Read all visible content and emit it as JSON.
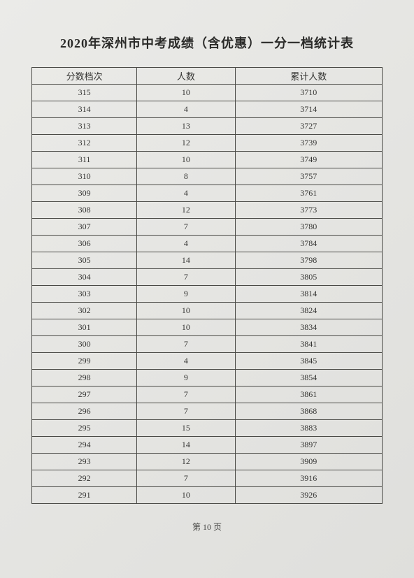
{
  "title": "2020年深州市中考成绩（含优惠）一分一档统计表",
  "columns": [
    "分数档次",
    "人数",
    "累计人数"
  ],
  "rows": [
    [
      "315",
      "10",
      "3710"
    ],
    [
      "314",
      "4",
      "3714"
    ],
    [
      "313",
      "13",
      "3727"
    ],
    [
      "312",
      "12",
      "3739"
    ],
    [
      "311",
      "10",
      "3749"
    ],
    [
      "310",
      "8",
      "3757"
    ],
    [
      "309",
      "4",
      "3761"
    ],
    [
      "308",
      "12",
      "3773"
    ],
    [
      "307",
      "7",
      "3780"
    ],
    [
      "306",
      "4",
      "3784"
    ],
    [
      "305",
      "14",
      "3798"
    ],
    [
      "304",
      "7",
      "3805"
    ],
    [
      "303",
      "9",
      "3814"
    ],
    [
      "302",
      "10",
      "3824"
    ],
    [
      "301",
      "10",
      "3834"
    ],
    [
      "300",
      "7",
      "3841"
    ],
    [
      "299",
      "4",
      "3845"
    ],
    [
      "298",
      "9",
      "3854"
    ],
    [
      "297",
      "7",
      "3861"
    ],
    [
      "296",
      "7",
      "3868"
    ],
    [
      "295",
      "15",
      "3883"
    ],
    [
      "294",
      "14",
      "3897"
    ],
    [
      "293",
      "12",
      "3909"
    ],
    [
      "292",
      "7",
      "3916"
    ],
    [
      "291",
      "10",
      "3926"
    ]
  ],
  "footer": "第 10 页"
}
